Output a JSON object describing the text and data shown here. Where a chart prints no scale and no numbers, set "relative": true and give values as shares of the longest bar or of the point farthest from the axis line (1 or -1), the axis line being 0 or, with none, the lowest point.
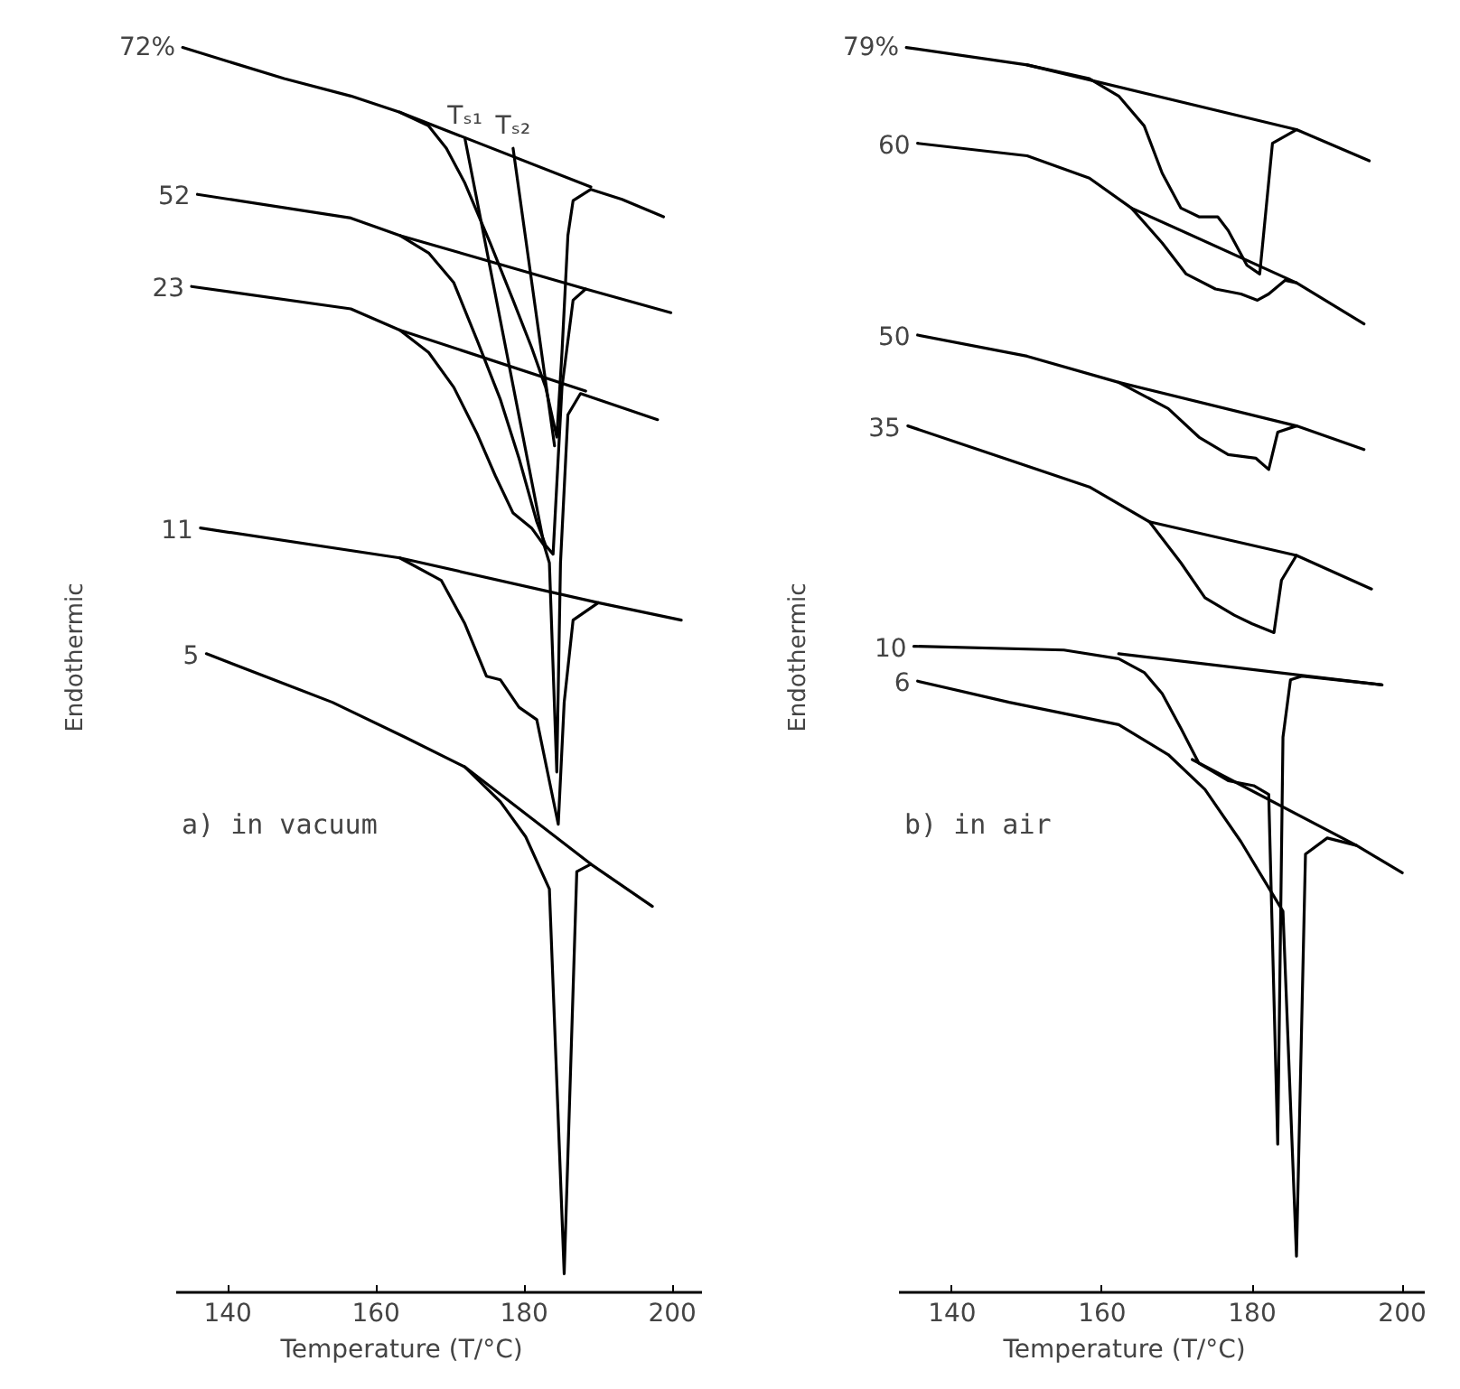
{
  "chart_data": [
    {
      "type": "line",
      "relative": true,
      "xlabel": "Temperature  (T/°C)",
      "ylabel": "Endothermic",
      "xlim": [
        133,
        204
      ],
      "xticks": [
        140,
        160,
        180,
        200
      ],
      "tick_labels": "x",
      "grid": false,
      "series": [
        {
          "color": "#000000",
          "x": [
            133.9,
            147.6,
            156.6,
            163.2,
            167.1,
            169.5,
            172.0,
            175.4,
            178.5,
            181.0,
            182.9,
            184.4,
            185.1,
            185.9,
            186.6,
            189.0,
            193.2,
            198.8
          ],
          "values": [
            1.0,
            0.975,
            0.961,
            0.948,
            0.937,
            0.919,
            0.891,
            0.843,
            0.797,
            0.759,
            0.727,
            0.687,
            0.755,
            0.849,
            0.877,
            0.886,
            0.878,
            0.864
          ]
        },
        {
          "color": "#000000",
          "x": [
            135.9,
            156.6,
            163.2,
            167.1,
            170.5,
            173.7,
            176.8,
            179.3,
            181.7,
            182.9,
            183.9,
            185.1,
            186.6,
            188.3,
            199.8
          ],
          "values": [
            0.882,
            0.863,
            0.849,
            0.835,
            0.811,
            0.764,
            0.717,
            0.67,
            0.619,
            0.6,
            0.593,
            0.727,
            0.797,
            0.806,
            0.787
          ]
        },
        {
          "color": "#000000",
          "x": [
            135.1,
            156.6,
            163.2,
            167.1,
            170.5,
            173.7,
            176.1,
            178.5,
            181.0,
            182.7,
            183.4,
            184.4,
            184.9,
            185.9,
            187.6,
            198.0
          ],
          "values": [
            0.808,
            0.79,
            0.773,
            0.755,
            0.727,
            0.689,
            0.656,
            0.626,
            0.614,
            0.6,
            0.586,
            0.418,
            0.586,
            0.705,
            0.722,
            0.701
          ]
        },
        {
          "color": "#000000",
          "x": [
            136.3,
            163.2,
            168.8,
            172.0,
            174.9,
            176.8,
            179.3,
            181.7,
            184.6,
            185.4,
            186.6,
            190.0,
            201.2
          ],
          "values": [
            0.614,
            0.59,
            0.572,
            0.537,
            0.495,
            0.492,
            0.47,
            0.46,
            0.376,
            0.474,
            0.54,
            0.554,
            0.54
          ]
        },
        {
          "color": "#000000",
          "x": [
            137.1,
            154.1,
            163.9,
            172.0,
            176.8,
            180.2,
            183.4,
            185.4,
            187.1,
            189.0,
            197.3
          ],
          "values": [
            0.513,
            0.474,
            0.446,
            0.422,
            0.394,
            0.366,
            0.324,
            0.015,
            0.338,
            0.344,
            0.31
          ]
        },
        {
          "color": "#000000",
          "x": [
            163.2,
            189.0
          ],
          "values": [
            0.948,
            0.888
          ]
        },
        {
          "color": "#000000",
          "x": [
            163.2,
            188.3
          ],
          "values": [
            0.849,
            0.806
          ]
        },
        {
          "color": "#000000",
          "x": [
            163.2,
            188.3
          ],
          "values": [
            0.773,
            0.724
          ]
        },
        {
          "color": "#000000",
          "x": [
            163.2,
            190.0
          ],
          "values": [
            0.59,
            0.554
          ]
        },
        {
          "color": "#000000",
          "x": [
            172.0,
            189.0
          ],
          "values": [
            0.422,
            0.344
          ]
        },
        {
          "color": "#000000",
          "x": [
            172.0,
            182.7
          ],
          "values": [
            0.927,
            0.6
          ]
        },
        {
          "color": "#000000",
          "x": [
            178.5,
            184.1
          ],
          "values": [
            0.919,
            0.68
          ]
        }
      ],
      "annotations": [
        {
          "text": "72%",
          "x": 133.9,
          "y": 1.0
        },
        {
          "text": "52",
          "x": 135.9,
          "y": 0.882
        },
        {
          "text": "23",
          "x": 135.1,
          "y": 0.808
        },
        {
          "text": "11",
          "x": 136.3,
          "y": 0.614
        },
        {
          "text": "5",
          "x": 137.1,
          "y": 0.513
        },
        {
          "text": "Tₛ₁",
          "x": 172.0,
          "y": 0.927
        },
        {
          "text": "Tₛ₂",
          "x": 178.5,
          "y": 0.919
        },
        "a) in vacuum"
      ]
    },
    {
      "type": "line",
      "relative": true,
      "xlabel": "Temperature  (T/°C)",
      "ylabel": "Endothermic",
      "xlim": [
        133,
        203
      ],
      "xticks": [
        140,
        160,
        180,
        200
      ],
      "tick_labels": "x",
      "grid": false,
      "series": [
        {
          "color": "#000000",
          "x": [
            133.9,
            150.0,
            158.3,
            162.2,
            165.6,
            168.0,
            170.5,
            172.9,
            175.4,
            176.8,
            179.3,
            181.0,
            182.7,
            185.9,
            195.6
          ],
          "values": [
            1.0,
            0.986,
            0.975,
            0.961,
            0.937,
            0.899,
            0.871,
            0.864,
            0.864,
            0.853,
            0.825,
            0.818,
            0.923,
            0.934,
            0.909
          ]
        },
        {
          "color": "#000000",
          "x": [
            135.4,
            150.0,
            158.3,
            163.9,
            168.0,
            171.2,
            175.1,
            178.5,
            180.7,
            182.2,
            184.4,
            185.9,
            194.9
          ],
          "values": [
            0.923,
            0.913,
            0.895,
            0.871,
            0.843,
            0.818,
            0.806,
            0.802,
            0.797,
            0.802,
            0.813,
            0.811,
            0.778
          ]
        },
        {
          "color": "#000000",
          "x": [
            135.4,
            150.0,
            162.2,
            168.8,
            172.9,
            176.8,
            180.5,
            182.2,
            183.4,
            185.9,
            194.9
          ],
          "values": [
            0.769,
            0.752,
            0.731,
            0.71,
            0.687,
            0.673,
            0.67,
            0.661,
            0.691,
            0.696,
            0.677
          ]
        },
        {
          "color": "#000000",
          "x": [
            134.1,
            158.3,
            166.3,
            170.5,
            173.7,
            177.6,
            180.0,
            182.9,
            183.9,
            185.9,
            195.9
          ],
          "values": [
            0.696,
            0.647,
            0.619,
            0.586,
            0.558,
            0.544,
            0.537,
            0.53,
            0.572,
            0.592,
            0.565
          ]
        },
        {
          "color": "#000000",
          "x": [
            134.9,
            154.9,
            162.2,
            165.6,
            168.0,
            170.5,
            172.9,
            176.8,
            180.2,
            182.2,
            183.4,
            184.1,
            185.1,
            186.6,
            197.3
          ],
          "values": [
            0.519,
            0.516,
            0.509,
            0.498,
            0.481,
            0.453,
            0.425,
            0.411,
            0.407,
            0.4,
            0.119,
            0.446,
            0.492,
            0.495,
            0.488
          ]
        },
        {
          "color": "#000000",
          "x": [
            135.4,
            147.6,
            162.2,
            168.8,
            173.7,
            178.5,
            181.7,
            184.1,
            185.9,
            187.1,
            190.0,
            193.9,
            200.0
          ],
          "values": [
            0.491,
            0.474,
            0.456,
            0.432,
            0.404,
            0.362,
            0.33,
            0.306,
            0.029,
            0.352,
            0.365,
            0.359,
            0.337
          ]
        },
        {
          "color": "#000000",
          "x": [
            150.0,
            185.9
          ],
          "values": [
            0.986,
            0.934
          ]
        },
        {
          "color": "#000000",
          "x": [
            163.9,
            185.9
          ],
          "values": [
            0.871,
            0.811
          ]
        },
        {
          "color": "#000000",
          "x": [
            162.2,
            185.9
          ],
          "values": [
            0.731,
            0.696
          ]
        },
        {
          "color": "#000000",
          "x": [
            166.3,
            185.9
          ],
          "values": [
            0.619,
            0.592
          ]
        },
        {
          "color": "#000000",
          "x": [
            162.2,
            197.3
          ],
          "values": [
            0.513,
            0.488
          ]
        },
        {
          "color": "#000000",
          "x": [
            172.0,
            193.9
          ],
          "values": [
            0.428,
            0.359
          ]
        }
      ],
      "annotations": [
        {
          "text": "79%",
          "x": 133.9,
          "y": 1.0
        },
        {
          "text": "60",
          "x": 135.4,
          "y": 0.923
        },
        {
          "text": "50",
          "x": 135.4,
          "y": 0.769
        },
        {
          "text": "35",
          "x": 134.1,
          "y": 0.696
        },
        {
          "text": "10",
          "x": 134.9,
          "y": 0.519
        },
        {
          "text": "6",
          "x": 135.4,
          "y": 0.491
        },
        "b) in air"
      ]
    }
  ]
}
